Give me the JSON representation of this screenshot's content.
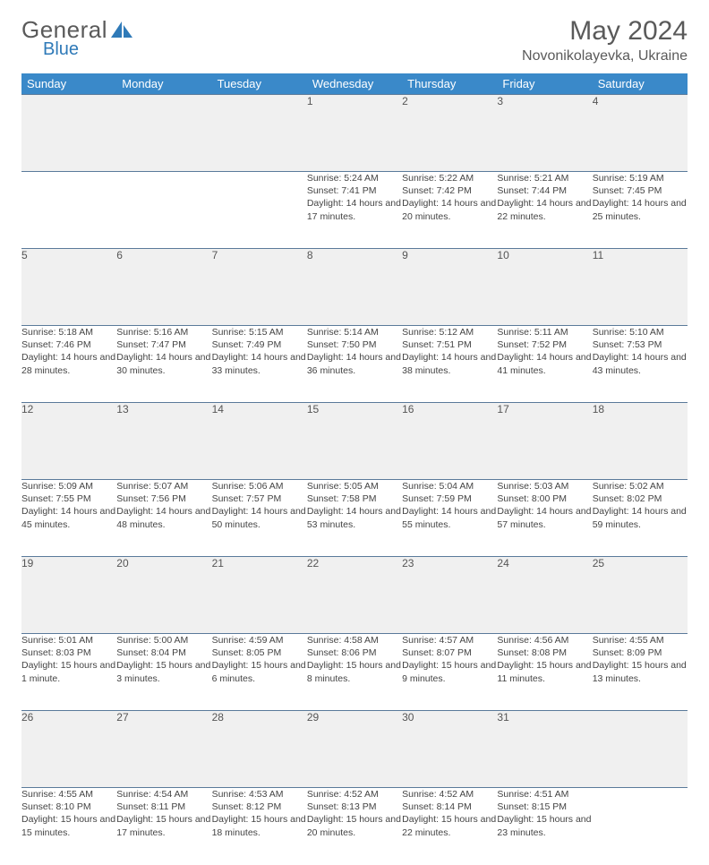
{
  "brand": {
    "name_part1": "General",
    "name_part2": "Blue"
  },
  "title": "May 2024",
  "location": "Novonikolayevka, Ukraine",
  "colors": {
    "header_bg": "#3a89c9",
    "header_text": "#ffffff",
    "daynum_bg": "#f0f0f0",
    "border": "#5a7a9a",
    "text": "#444444",
    "brand_gray": "#5a5a5a",
    "brand_blue": "#2f7ab8"
  },
  "weekdays": [
    "Sunday",
    "Monday",
    "Tuesday",
    "Wednesday",
    "Thursday",
    "Friday",
    "Saturday"
  ],
  "weeks": [
    {
      "nums": [
        "",
        "",
        "",
        "1",
        "2",
        "3",
        "4"
      ],
      "details": [
        "",
        "",
        "",
        "Sunrise: 5:24 AM\nSunset: 7:41 PM\nDaylight: 14 hours and 17 minutes.",
        "Sunrise: 5:22 AM\nSunset: 7:42 PM\nDaylight: 14 hours and 20 minutes.",
        "Sunrise: 5:21 AM\nSunset: 7:44 PM\nDaylight: 14 hours and 22 minutes.",
        "Sunrise: 5:19 AM\nSunset: 7:45 PM\nDaylight: 14 hours and 25 minutes."
      ]
    },
    {
      "nums": [
        "5",
        "6",
        "7",
        "8",
        "9",
        "10",
        "11"
      ],
      "details": [
        "Sunrise: 5:18 AM\nSunset: 7:46 PM\nDaylight: 14 hours and 28 minutes.",
        "Sunrise: 5:16 AM\nSunset: 7:47 PM\nDaylight: 14 hours and 30 minutes.",
        "Sunrise: 5:15 AM\nSunset: 7:49 PM\nDaylight: 14 hours and 33 minutes.",
        "Sunrise: 5:14 AM\nSunset: 7:50 PM\nDaylight: 14 hours and 36 minutes.",
        "Sunrise: 5:12 AM\nSunset: 7:51 PM\nDaylight: 14 hours and 38 minutes.",
        "Sunrise: 5:11 AM\nSunset: 7:52 PM\nDaylight: 14 hours and 41 minutes.",
        "Sunrise: 5:10 AM\nSunset: 7:53 PM\nDaylight: 14 hours and 43 minutes."
      ]
    },
    {
      "nums": [
        "12",
        "13",
        "14",
        "15",
        "16",
        "17",
        "18"
      ],
      "details": [
        "Sunrise: 5:09 AM\nSunset: 7:55 PM\nDaylight: 14 hours and 45 minutes.",
        "Sunrise: 5:07 AM\nSunset: 7:56 PM\nDaylight: 14 hours and 48 minutes.",
        "Sunrise: 5:06 AM\nSunset: 7:57 PM\nDaylight: 14 hours and 50 minutes.",
        "Sunrise: 5:05 AM\nSunset: 7:58 PM\nDaylight: 14 hours and 53 minutes.",
        "Sunrise: 5:04 AM\nSunset: 7:59 PM\nDaylight: 14 hours and 55 minutes.",
        "Sunrise: 5:03 AM\nSunset: 8:00 PM\nDaylight: 14 hours and 57 minutes.",
        "Sunrise: 5:02 AM\nSunset: 8:02 PM\nDaylight: 14 hours and 59 minutes."
      ]
    },
    {
      "nums": [
        "19",
        "20",
        "21",
        "22",
        "23",
        "24",
        "25"
      ],
      "details": [
        "Sunrise: 5:01 AM\nSunset: 8:03 PM\nDaylight: 15 hours and 1 minute.",
        "Sunrise: 5:00 AM\nSunset: 8:04 PM\nDaylight: 15 hours and 3 minutes.",
        "Sunrise: 4:59 AM\nSunset: 8:05 PM\nDaylight: 15 hours and 6 minutes.",
        "Sunrise: 4:58 AM\nSunset: 8:06 PM\nDaylight: 15 hours and 8 minutes.",
        "Sunrise: 4:57 AM\nSunset: 8:07 PM\nDaylight: 15 hours and 9 minutes.",
        "Sunrise: 4:56 AM\nSunset: 8:08 PM\nDaylight: 15 hours and 11 minutes.",
        "Sunrise: 4:55 AM\nSunset: 8:09 PM\nDaylight: 15 hours and 13 minutes."
      ]
    },
    {
      "nums": [
        "26",
        "27",
        "28",
        "29",
        "30",
        "31",
        ""
      ],
      "details": [
        "Sunrise: 4:55 AM\nSunset: 8:10 PM\nDaylight: 15 hours and 15 minutes.",
        "Sunrise: 4:54 AM\nSunset: 8:11 PM\nDaylight: 15 hours and 17 minutes.",
        "Sunrise: 4:53 AM\nSunset: 8:12 PM\nDaylight: 15 hours and 18 minutes.",
        "Sunrise: 4:52 AM\nSunset: 8:13 PM\nDaylight: 15 hours and 20 minutes.",
        "Sunrise: 4:52 AM\nSunset: 8:14 PM\nDaylight: 15 hours and 22 minutes.",
        "Sunrise: 4:51 AM\nSunset: 8:15 PM\nDaylight: 15 hours and 23 minutes.",
        ""
      ]
    }
  ]
}
